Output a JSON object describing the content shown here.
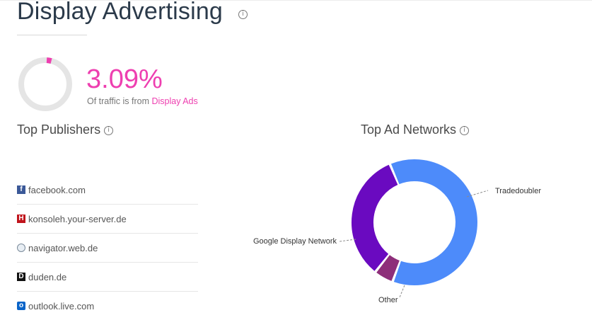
{
  "header": {
    "title": "Display Advertising",
    "info_icon": "i"
  },
  "traffic_share": {
    "value_text": "3.09%",
    "value_fraction": 0.0309,
    "caption_prefix": "Of traffic is from ",
    "caption_highlight": "Display Ads",
    "colors": {
      "accent": "#ee3fb0",
      "track": "#e5e5e5"
    }
  },
  "top_publishers": {
    "title": "Top Publishers",
    "items": [
      {
        "icon": "facebook-icon",
        "label": "facebook.com"
      },
      {
        "icon": "konsoleh-icon",
        "label": "konsoleh.your-server.de"
      },
      {
        "icon": "globe-icon",
        "label": "navigator.web.de"
      },
      {
        "icon": "duden-icon",
        "label": "duden.de"
      },
      {
        "icon": "outlook-icon",
        "label": "outlook.live.com"
      }
    ]
  },
  "top_ad_networks": {
    "title": "Top Ad Networks",
    "chart_data": {
      "type": "pie",
      "donut": true,
      "slices": [
        {
          "name": "Tradedoubler",
          "value": 0.62,
          "color": "#4d8bfa"
        },
        {
          "name": "Other",
          "value": 0.05,
          "color": "#8e2f7a"
        },
        {
          "name": "Google Display Network",
          "value": 0.33,
          "color": "#6a0ac0"
        }
      ]
    }
  }
}
